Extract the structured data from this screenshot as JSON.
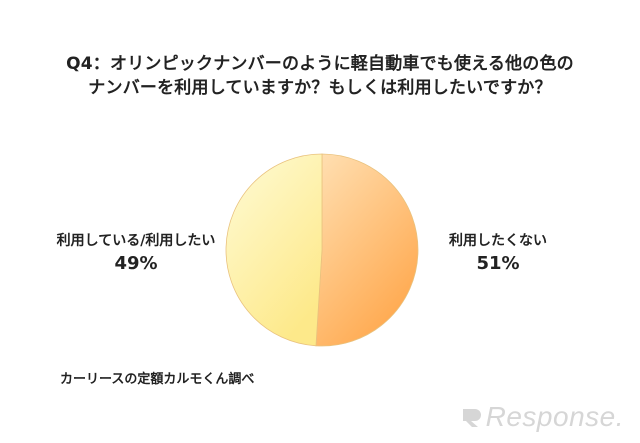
{
  "header": {
    "title_line1": "Q4：オリンピックナンバーのように軽自動車でも使える他の色の",
    "title_line2": "ナンバーを利用していますか？もしくは利用したいですか？"
  },
  "source": "カーリースの定額カルモくん調べ",
  "watermark": "Response.",
  "colors": {
    "left_slice_light": "#fffbd6",
    "left_slice_dark": "#fde98a",
    "right_slice_light": "#ffe0b3",
    "right_slice_dark": "#ffa94f",
    "text": "#222222"
  },
  "chart_data": {
    "type": "pie",
    "slices": [
      {
        "label": "利用したくない",
        "value": 51,
        "display": "51%"
      },
      {
        "label": "利用している/利用したい",
        "value": 49,
        "display": "49%"
      }
    ]
  }
}
